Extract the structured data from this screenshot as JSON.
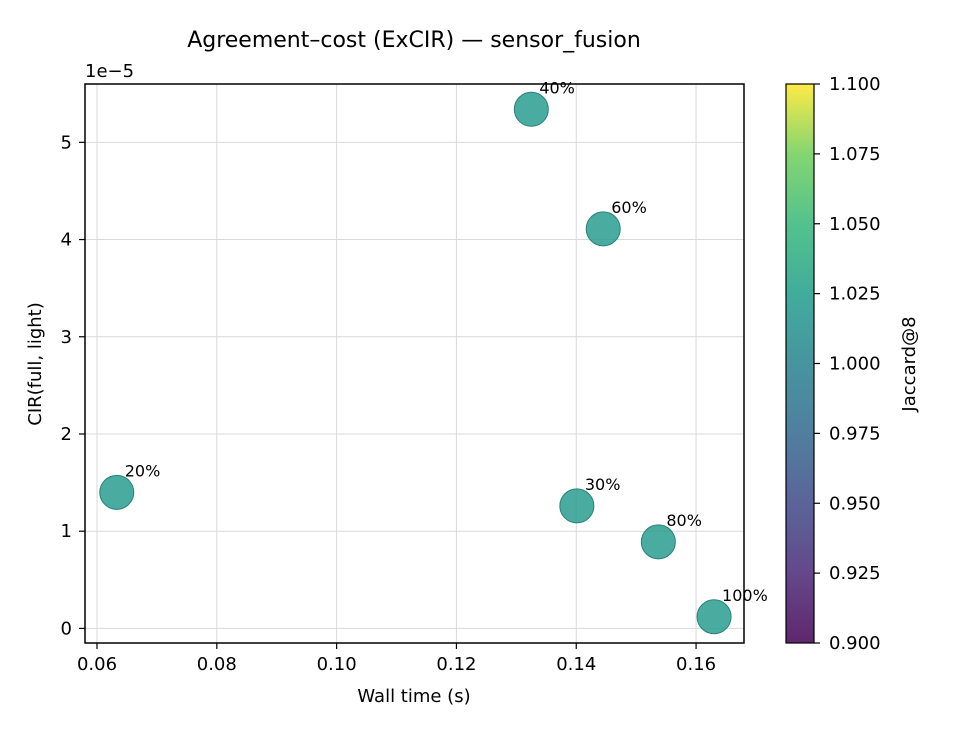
{
  "chart_data": {
    "type": "scatter",
    "title": "Agreement–cost (ExCIR) — sensor_fusion",
    "xlabel": "Wall time (s)",
    "ylabel": "CIR(full, light)",
    "y_offset_label": "1e−5",
    "xlim": [
      0.058,
      0.168
    ],
    "ylim": [
      -0.15,
      5.6
    ],
    "y_multiplier": 1e-05,
    "x_ticks": [
      0.06,
      0.08,
      0.1,
      0.12,
      0.14,
      0.16
    ],
    "x_tick_labels": [
      "0.06",
      "0.08",
      "0.10",
      "0.12",
      "0.14",
      "0.16"
    ],
    "y_ticks": [
      0,
      1,
      2,
      3,
      4,
      5
    ],
    "y_tick_labels": [
      "0",
      "1",
      "2",
      "3",
      "4",
      "5"
    ],
    "grid": true,
    "points": [
      {
        "label": "20%",
        "x": 0.0633,
        "y": 1.4,
        "color_value": 1.0
      },
      {
        "label": "30%",
        "x": 0.1401,
        "y": 1.26,
        "color_value": 1.0
      },
      {
        "label": "40%",
        "x": 0.1325,
        "y": 5.34,
        "color_value": 1.0
      },
      {
        "label": "60%",
        "x": 0.1445,
        "y": 4.11,
        "color_value": 1.0
      },
      {
        "label": "80%",
        "x": 0.1537,
        "y": 0.89,
        "color_value": 1.0
      },
      {
        "label": "100%",
        "x": 0.163,
        "y": 0.12,
        "color_value": 1.0
      }
    ],
    "point_color": "#2a9d8f",
    "colorbar": {
      "label": "Jaccard@8",
      "colormap": "viridis",
      "range": [
        0.9,
        1.1
      ],
      "ticks": [
        0.9,
        0.925,
        0.95,
        0.975,
        1.0,
        1.025,
        1.05,
        1.075,
        1.1
      ],
      "tick_labels": [
        "0.900",
        "0.925",
        "0.950",
        "0.975",
        "1.000",
        "1.025",
        "1.050",
        "1.075",
        "1.100"
      ]
    }
  }
}
